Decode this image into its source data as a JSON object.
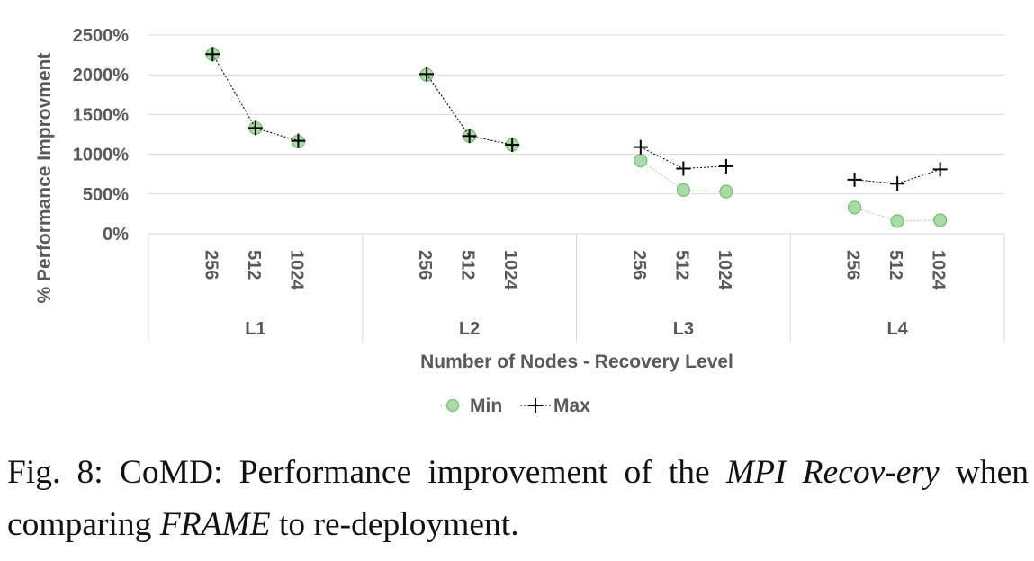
{
  "chart_data": {
    "type": "line",
    "title": "",
    "ylabel": "% Performance Improvment",
    "xlabel": "Number of Nodes - Recovery Level",
    "ylim": [
      0,
      2500
    ],
    "yticks": [
      "0%",
      "500%",
      "1000%",
      "1500%",
      "2000%",
      "2500%"
    ],
    "ytick_values": [
      0,
      500,
      1000,
      1500,
      2000,
      2500
    ],
    "groups": [
      "L1",
      "L2",
      "L3",
      "L4"
    ],
    "categories": [
      "256",
      "512",
      "1024"
    ],
    "series": [
      {
        "name": "Min",
        "color": "#a9dba9",
        "edge": "#6fbf6f",
        "values": [
          [
            2260,
            1330,
            1160
          ],
          [
            2000,
            1230,
            1120
          ],
          [
            920,
            550,
            530
          ],
          [
            330,
            160,
            170
          ]
        ]
      },
      {
        "name": "Max",
        "color": "#000000",
        "values": [
          [
            2260,
            1330,
            1170
          ],
          [
            2010,
            1230,
            1120
          ],
          [
            1090,
            820,
            850
          ],
          [
            680,
            630,
            810
          ]
        ]
      }
    ],
    "legend_position": "bottom-center",
    "grid": true
  },
  "caption": {
    "prefix": "Fig. 8: CoMD: Performance improvement of the",
    "em1": "MPI Recov-ery",
    "mid": "when comparing",
    "em2": "FRAME",
    "suffix": "to re-deployment."
  }
}
